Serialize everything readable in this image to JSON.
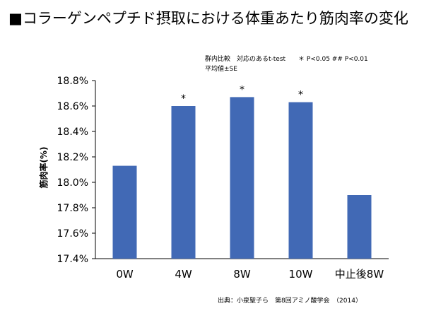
{
  "chart_data": {
    "type": "bar",
    "title": "■コラーゲンペプチド摂取における体重あたり筋肉率の変化",
    "notes": [
      "群内比較　対応のあるt-test　　＊ P<0.05 ## P<0.01",
      "平均値±SE"
    ],
    "ylabel": "筋肉率(%)",
    "xlabel": "",
    "categories": [
      "0W",
      "4W",
      "8W",
      "10W",
      "中止後8W"
    ],
    "values": [
      18.13,
      18.6,
      18.67,
      18.63,
      17.9
    ],
    "significance": [
      "",
      "*",
      "*",
      "*",
      ""
    ],
    "ylim": [
      17.4,
      18.8
    ],
    "yticks": [
      "17.4%",
      "17.6%",
      "17.8%",
      "18.0%",
      "18.2%",
      "18.4%",
      "18.6%",
      "18.8%"
    ],
    "ytick_values": [
      17.4,
      17.6,
      17.8,
      18.0,
      18.2,
      18.4,
      18.6,
      18.8
    ],
    "bar_color": "#4169B5",
    "grid": false,
    "source": "出典：小泉聖子ら　第8回アミノ酸学会　（2014）"
  }
}
